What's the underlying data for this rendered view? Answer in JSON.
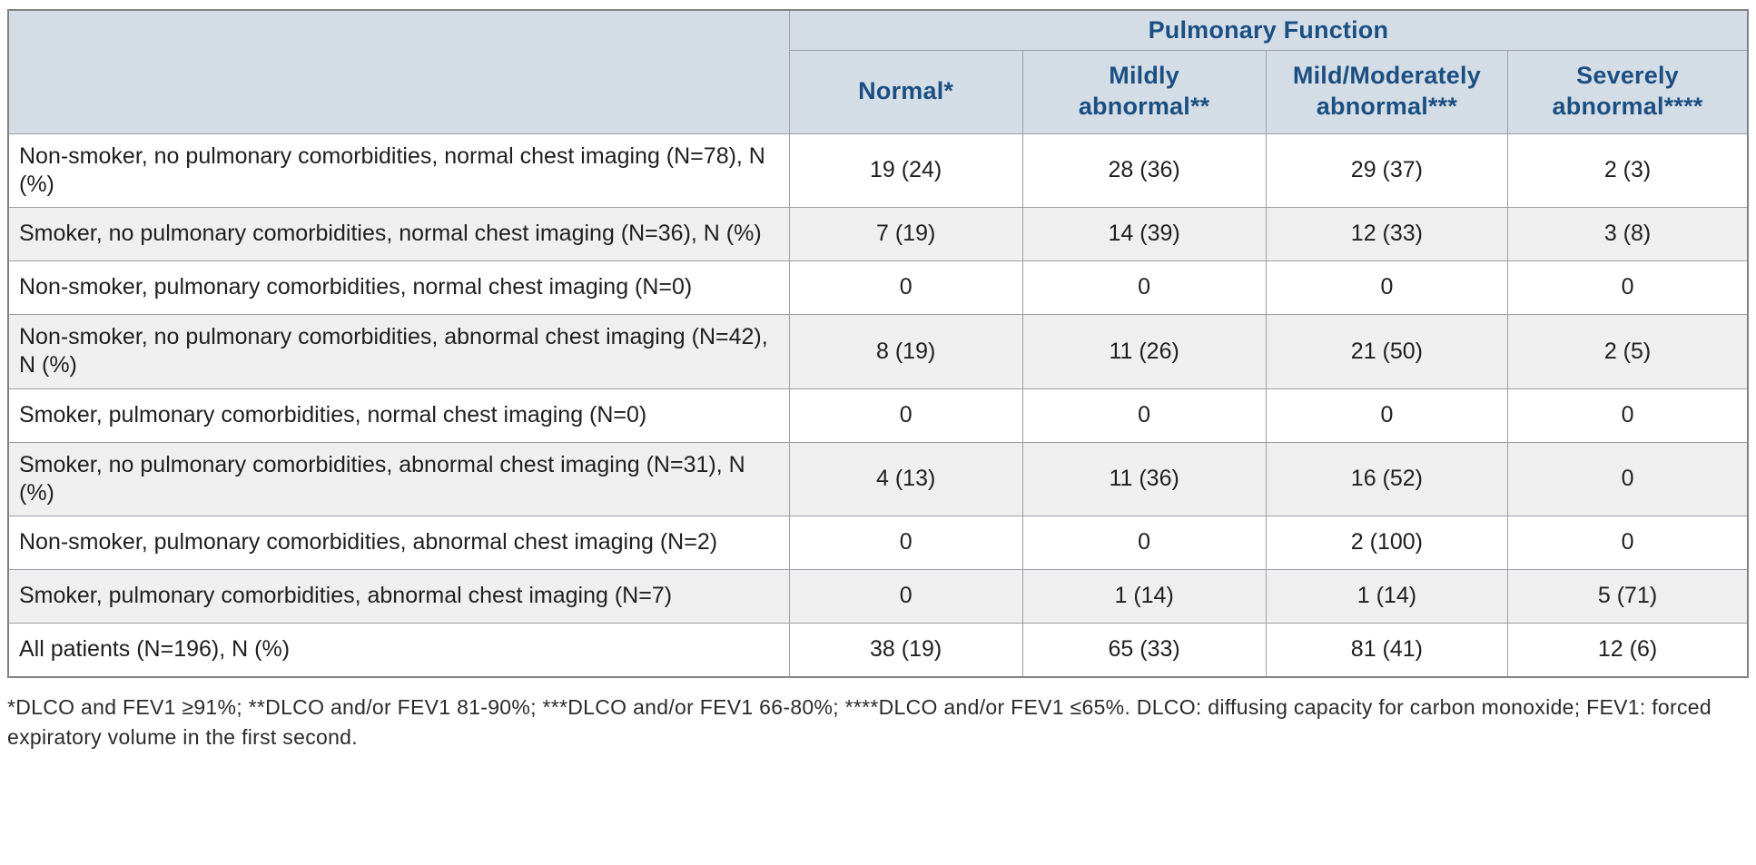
{
  "table": {
    "group_header": "Pulmonary Function",
    "columns": [
      "Normal*",
      "Mildly abnormal**",
      "Mild/Moderately abnormal***",
      "Severely abnormal****"
    ],
    "rows": [
      {
        "label": "Non-smoker, no pulmonary comorbidities, normal chest imaging (N=78), N (%)",
        "values": [
          "19 (24)",
          "28 (36)",
          "29 (37)",
          "2 (3)"
        ]
      },
      {
        "label": "Smoker, no pulmonary comorbidities, normal chest imaging (N=36), N (%)",
        "values": [
          "7 (19)",
          "14 (39)",
          "12 (33)",
          "3 (8)"
        ]
      },
      {
        "label": "Non-smoker, pulmonary comorbidities, normal chest imaging (N=0)",
        "values": [
          "0",
          "0",
          "0",
          "0"
        ]
      },
      {
        "label": "Non-smoker, no pulmonary comorbidities, abnormal chest imaging (N=42), N (%)",
        "values": [
          "8 (19)",
          "11 (26)",
          "21 (50)",
          "2 (5)"
        ]
      },
      {
        "label": "Smoker, pulmonary comorbidities, normal chest imaging (N=0)",
        "values": [
          "0",
          "0",
          "0",
          "0"
        ]
      },
      {
        "label": "Smoker, no pulmonary comorbidities, abnormal chest imaging (N=31), N (%)",
        "values": [
          "4 (13)",
          "11 (36)",
          "16 (52)",
          "0"
        ]
      },
      {
        "label": "Non-smoker, pulmonary comorbidities, abnormal chest imaging (N=2)",
        "values": [
          "0",
          "0",
          "2 (100)",
          "0"
        ]
      },
      {
        "label": "Smoker, pulmonary comorbidities, abnormal chest imaging (N=7)",
        "values": [
          "0",
          "1 (14)",
          "1 (14)",
          "5 (71)"
        ]
      },
      {
        "label": "All patients (N=196), N (%)",
        "values": [
          "38 (19)",
          "65 (33)",
          "81 (41)",
          "12 (6)"
        ]
      }
    ]
  },
  "footnote": "*DLCO and FEV1 ≥91%; **DLCO and/or FEV1 81-90%; ***DLCO and/or FEV1 66-80%; ****DLCO and/or FEV1 ≤65%. DLCO: diffusing capacity for carbon monoxide; FEV1: forced expiratory volume in the first second.",
  "colors": {
    "header_bg": "#d4dde6",
    "header_text": "#1b4f82",
    "stripe_bg": "#f0efef",
    "inner_border": "#9aa0a6",
    "outer_border": "#828282",
    "body_text": "#1f1f1f"
  }
}
